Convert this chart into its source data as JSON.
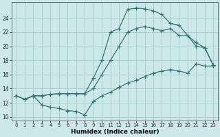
{
  "xlabel": "Humidex (Indice chaleur)",
  "bg_color": "#cce8ea",
  "grid_color": "#aacccc",
  "line_color": "#2d7070",
  "xlim": [
    -0.5,
    23.5
  ],
  "ylim": [
    9.5,
    26.2
  ],
  "xticks": [
    0,
    1,
    2,
    3,
    4,
    5,
    6,
    7,
    8,
    9,
    10,
    11,
    12,
    13,
    14,
    15,
    16,
    17,
    18,
    19,
    20,
    21,
    22,
    23
  ],
  "yticks": [
    10,
    12,
    14,
    16,
    18,
    20,
    22,
    24
  ],
  "hours": [
    0,
    1,
    2,
    3,
    4,
    5,
    6,
    7,
    8,
    9,
    10,
    11,
    12,
    13,
    14,
    15,
    16,
    17,
    18,
    19,
    20,
    21,
    22,
    23
  ],
  "line_min": [
    13,
    12.5,
    13,
    11.7,
    11.4,
    11.2,
    10.9,
    10.8,
    10.3,
    12.2,
    13.0,
    13.5,
    14.2,
    14.8,
    15.2,
    15.7,
    16.2,
    16.5,
    16.7,
    16.5,
    16.2,
    17.5,
    17.2,
    17.2
  ],
  "line_mean": [
    13,
    12.5,
    13,
    13.0,
    13.2,
    13.3,
    13.3,
    13.3,
    13.3,
    14.0,
    16.0,
    18.0,
    20.0,
    22.0,
    22.5,
    22.8,
    22.5,
    22.2,
    22.5,
    21.5,
    21.5,
    20.5,
    19.8,
    17.3
  ],
  "line_max": [
    13,
    12.5,
    13,
    13.0,
    13.2,
    13.3,
    13.3,
    13.3,
    13.3,
    15.5,
    18.0,
    22.0,
    22.5,
    25.2,
    25.4,
    25.3,
    25.0,
    24.5,
    23.2,
    23.0,
    21.5,
    20.0,
    19.8,
    17.3
  ]
}
